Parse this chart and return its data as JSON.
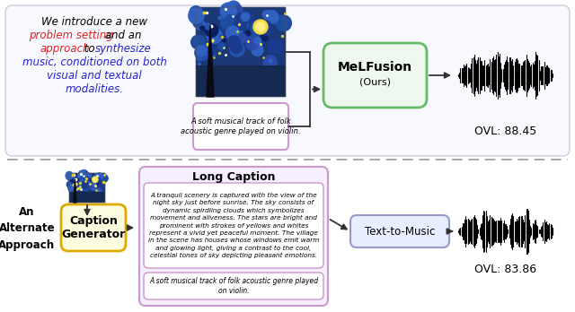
{
  "bg_color": "#ffffff",
  "top_panel_bg": "#f8f8ff",
  "top_panel_border": "#ccccdd",
  "caption_text_top": "A soft musical track of folk\nacoustic genre played on violin.",
  "caption_color_top": "#cc99cc",
  "melfusion_label_line1": "MeLFusion",
  "melfusion_label_line2": "(Ours)",
  "melfusion_bg": "#eef8ee",
  "melfusion_border": "#66bb66",
  "ovl_top": "OVL: 88.45",
  "ovl_bottom": "OVL: 83.86",
  "alternate_label": "An\nAlternate\nApproach",
  "caption_gen_label": "Caption\nGenerator",
  "caption_gen_bg": "#fffde0",
  "caption_gen_border": "#ddaa00",
  "long_caption_title": "Long Caption",
  "long_caption_text": "A tranquil scenery is captured with the view of the\nnight sky just before sunrise. The sky consists of\ndynamic spirdling clouds which symbolizes\nmovement and aliveness. The stars are bright and\nprominent with strokes of yellows and whites\nrepresent a vivid yet peaceful moment. The village\nin the scene has houses whose windows emit warm\nand glowing light, giving a contrast to the cool,\ncelestial tones of sky depicting pleasant emotions.",
  "long_caption_bg": "#f5eeff",
  "long_caption_border": "#cc99cc",
  "caption_text_bottom": "A soft musical track of folk acoustic genre played\non violin.",
  "caption_bottom_bg": "#ffffff",
  "caption_bottom_border": "#cc99cc",
  "text_to_music_label": "Text-to-Music",
  "text_to_music_bg": "#e8eeff",
  "text_to_music_border": "#9999cc",
  "arrow_color": "#333333",
  "intro_line1": "We introduce a new",
  "intro_line2a": "problem setting",
  "intro_line2b": " and an",
  "intro_line3a": "approach",
  "intro_line3b": " to ",
  "intro_line3c": "synthesize",
  "intro_line4": "music, conditioned on both",
  "intro_line5": "visual and textual",
  "intro_line6": "modalities.",
  "color_black": "#000000",
  "color_red": "#dd2222",
  "color_blue": "#2222cc"
}
